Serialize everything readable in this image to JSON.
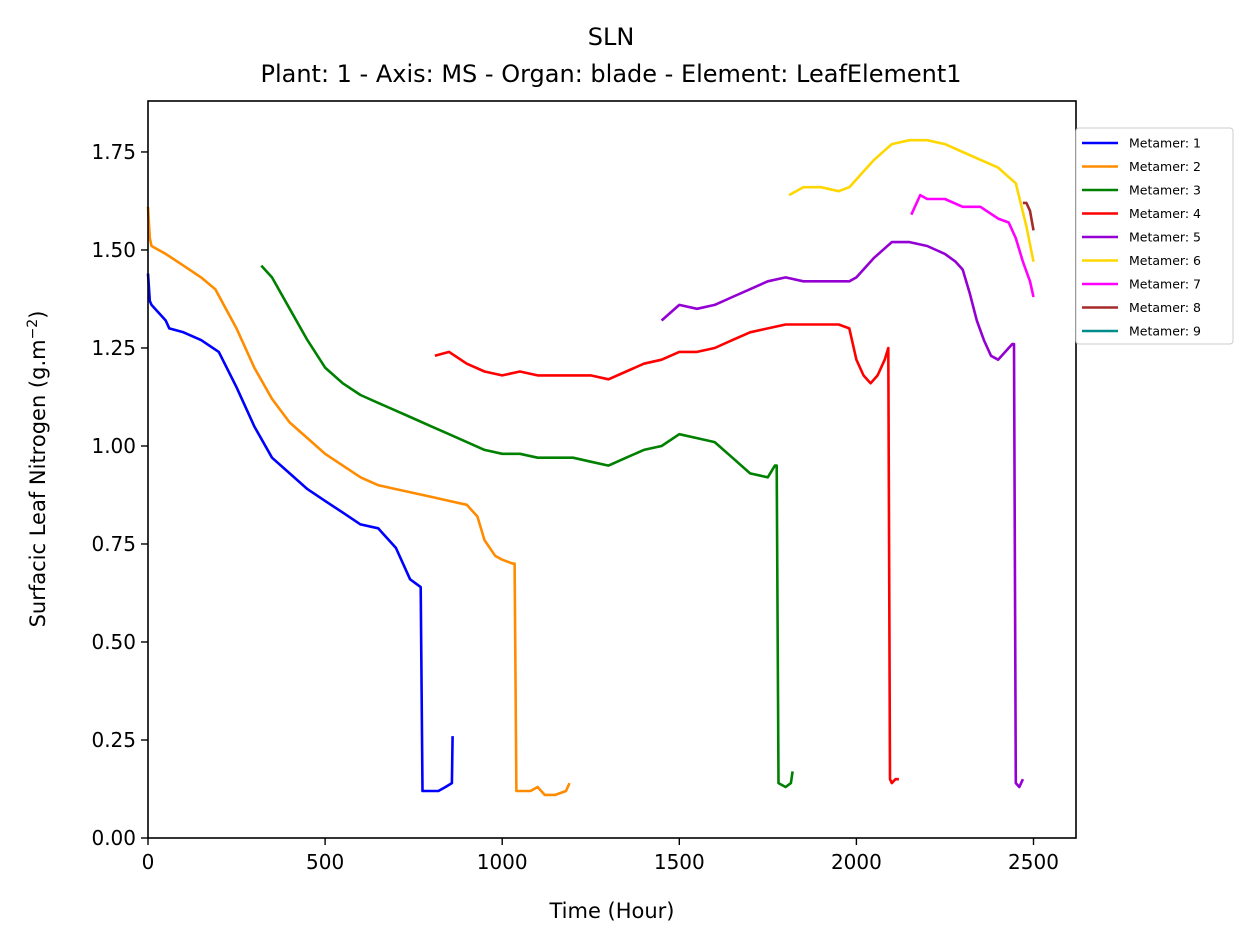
{
  "chart_data": {
    "type": "line",
    "title": "SLN",
    "subtitle": "Plant: 1 - Axis: MS - Organ: blade - Element: LeafElement1",
    "xlabel": "Time (Hour)",
    "ylabel": "Surfacic Leaf Nitrogen (g.m",
    "ylabel_unit_sup": "−2",
    "ylabel_suffix": ")",
    "xlim": [
      0,
      2620
    ],
    "ylim": [
      0,
      1.88
    ],
    "xticks": [
      0,
      500,
      1000,
      1500,
      2000,
      2500
    ],
    "xtick_labels": [
      "0",
      "500",
      "1000",
      "1500",
      "2000",
      "2500"
    ],
    "yticks": [
      0,
      0.25,
      0.5,
      0.75,
      1.0,
      1.25,
      1.5,
      1.75
    ],
    "ytick_labels": [
      "0.00",
      "0.25",
      "0.50",
      "0.75",
      "1.00",
      "1.25",
      "1.50",
      "1.75"
    ],
    "grid": false,
    "legend_position": "right, outside plot area (upper)",
    "series": [
      {
        "name": "Metamer: 1",
        "color": "#0000ff",
        "x": [
          0,
          5,
          10,
          40,
          50,
          60,
          100,
          150,
          200,
          250,
          300,
          350,
          400,
          450,
          500,
          550,
          600,
          650,
          700,
          740,
          770,
          775,
          780,
          800,
          820,
          840,
          858,
          860
        ],
        "y": [
          1.44,
          1.37,
          1.36,
          1.33,
          1.32,
          1.3,
          1.29,
          1.27,
          1.24,
          1.15,
          1.05,
          0.97,
          0.93,
          0.89,
          0.86,
          0.83,
          0.8,
          0.79,
          0.74,
          0.66,
          0.64,
          0.12,
          0.12,
          0.12,
          0.12,
          0.13,
          0.14,
          0.26
        ]
      },
      {
        "name": "Metamer: 2",
        "color": "#ff8c00",
        "x": [
          0,
          5,
          10,
          50,
          100,
          150,
          190,
          250,
          300,
          350,
          400,
          450,
          500,
          550,
          600,
          650,
          700,
          750,
          800,
          850,
          900,
          930,
          950,
          980,
          1000,
          1030,
          1035,
          1040,
          1060,
          1080,
          1100,
          1120,
          1150,
          1180,
          1190
        ],
        "y": [
          1.61,
          1.53,
          1.51,
          1.49,
          1.46,
          1.43,
          1.4,
          1.3,
          1.2,
          1.12,
          1.06,
          1.02,
          0.98,
          0.95,
          0.92,
          0.9,
          0.89,
          0.88,
          0.87,
          0.86,
          0.85,
          0.82,
          0.76,
          0.72,
          0.71,
          0.7,
          0.7,
          0.12,
          0.12,
          0.12,
          0.13,
          0.11,
          0.11,
          0.12,
          0.14
        ]
      },
      {
        "name": "Metamer: 3",
        "color": "#008000",
        "x": [
          320,
          350,
          400,
          450,
          500,
          550,
          600,
          650,
          700,
          750,
          800,
          850,
          900,
          950,
          1000,
          1050,
          1100,
          1150,
          1200,
          1250,
          1300,
          1350,
          1400,
          1450,
          1500,
          1550,
          1600,
          1650,
          1700,
          1750,
          1770,
          1775,
          1780,
          1800,
          1815,
          1820
        ],
        "y": [
          1.46,
          1.43,
          1.35,
          1.27,
          1.2,
          1.16,
          1.13,
          1.11,
          1.09,
          1.07,
          1.05,
          1.03,
          1.01,
          0.99,
          0.98,
          0.98,
          0.97,
          0.97,
          0.97,
          0.96,
          0.95,
          0.97,
          0.99,
          1.0,
          1.03,
          1.02,
          1.01,
          0.97,
          0.93,
          0.92,
          0.95,
          0.95,
          0.14,
          0.13,
          0.14,
          0.17
        ]
      },
      {
        "name": "Metamer: 4",
        "color": "#ff0000",
        "x": [
          810,
          850,
          900,
          950,
          1000,
          1050,
          1100,
          1150,
          1200,
          1250,
          1300,
          1350,
          1400,
          1450,
          1500,
          1550,
          1600,
          1650,
          1700,
          1750,
          1800,
          1850,
          1900,
          1950,
          1980,
          2000,
          2020,
          2040,
          2060,
          2080,
          2090,
          2095,
          2100,
          2110,
          2120
        ],
        "y": [
          1.23,
          1.24,
          1.21,
          1.19,
          1.18,
          1.19,
          1.18,
          1.18,
          1.18,
          1.18,
          1.17,
          1.19,
          1.21,
          1.22,
          1.24,
          1.24,
          1.25,
          1.27,
          1.29,
          1.3,
          1.31,
          1.31,
          1.31,
          1.31,
          1.3,
          1.22,
          1.18,
          1.16,
          1.18,
          1.22,
          1.25,
          0.15,
          0.14,
          0.15,
          0.15
        ]
      },
      {
        "name": "Metamer: 5",
        "color": "#9400d3",
        "x": [
          1450,
          1500,
          1550,
          1600,
          1650,
          1700,
          1750,
          1800,
          1850,
          1900,
          1950,
          1980,
          2000,
          2050,
          2100,
          2150,
          2200,
          2250,
          2280,
          2300,
          2320,
          2340,
          2360,
          2380,
          2400,
          2420,
          2440,
          2445,
          2450,
          2460,
          2470
        ],
        "y": [
          1.32,
          1.36,
          1.35,
          1.36,
          1.38,
          1.4,
          1.42,
          1.43,
          1.42,
          1.42,
          1.42,
          1.42,
          1.43,
          1.48,
          1.52,
          1.52,
          1.51,
          1.49,
          1.47,
          1.45,
          1.39,
          1.32,
          1.27,
          1.23,
          1.22,
          1.24,
          1.26,
          1.26,
          0.14,
          0.13,
          0.15
        ]
      },
      {
        "name": "Metamer: 6",
        "color": "#ffd700",
        "x": [
          1810,
          1850,
          1900,
          1950,
          1980,
          2000,
          2050,
          2100,
          2150,
          2200,
          2250,
          2300,
          2350,
          2400,
          2450,
          2480,
          2500
        ],
        "y": [
          1.64,
          1.66,
          1.66,
          1.65,
          1.66,
          1.68,
          1.73,
          1.77,
          1.78,
          1.78,
          1.77,
          1.75,
          1.73,
          1.71,
          1.67,
          1.56,
          1.47
        ]
      },
      {
        "name": "Metamer: 7",
        "color": "#ff00ff",
        "x": [
          2155,
          2180,
          2200,
          2250,
          2300,
          2350,
          2400,
          2430,
          2450,
          2470,
          2490,
          2500
        ],
        "y": [
          1.59,
          1.64,
          1.63,
          1.63,
          1.61,
          1.61,
          1.58,
          1.57,
          1.53,
          1.47,
          1.42,
          1.38
        ]
      },
      {
        "name": "Metamer: 8",
        "color": "#a52a2a",
        "x": [
          2470,
          2480,
          2490,
          2500
        ],
        "y": [
          1.62,
          1.62,
          1.6,
          1.55
        ]
      },
      {
        "name": "Metamer: 9",
        "color": "#008b8b",
        "x": [],
        "y": []
      }
    ]
  }
}
